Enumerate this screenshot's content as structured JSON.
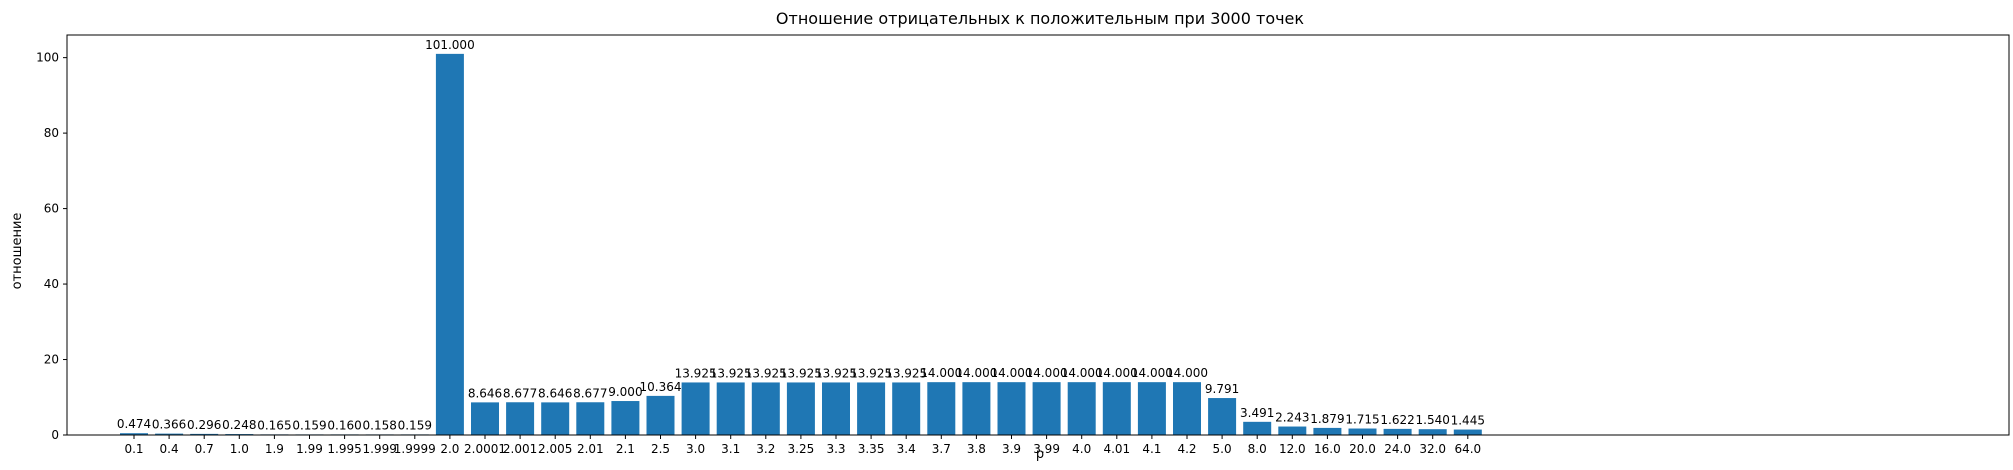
{
  "chart_data": {
    "type": "bar",
    "title": "Отношение отрицательных к положительным при 3000 точек",
    "xlabel": "p",
    "ylabel": "отношение",
    "categories": [
      "0.1",
      "0.4",
      "0.7",
      "1.0",
      "1.9",
      "1.99",
      "1.995",
      "1.999",
      "1.9999",
      "2.0",
      "2.0001",
      "2.001",
      "2.005",
      "2.01",
      "2.1",
      "2.5",
      "3.0",
      "3.1",
      "3.2",
      "3.25",
      "3.3",
      "3.35",
      "3.4",
      "3.7",
      "3.8",
      "3.9",
      "3.99",
      "4.0",
      "4.01",
      "4.1",
      "4.2",
      "5.0",
      "8.0",
      "12.0",
      "16.0",
      "20.0",
      "24.0",
      "32.0",
      "64.0"
    ],
    "values": [
      0.474,
      0.366,
      0.296,
      0.248,
      0.165,
      0.159,
      0.16,
      0.158,
      0.159,
      101.0,
      8.646,
      8.677,
      8.646,
      8.677,
      9.0,
      10.364,
      13.925,
      13.925,
      13.925,
      13.925,
      13.925,
      13.925,
      13.925,
      14.0,
      14.0,
      14.0,
      14.0,
      14.0,
      14.0,
      14.0,
      14.0,
      9.791,
      3.491,
      2.243,
      1.879,
      1.715,
      1.622,
      1.54,
      1.445
    ],
    "value_labels": [
      "0.474",
      "0.366",
      "0.296",
      "0.248",
      "0.165",
      "0.159",
      "0.160",
      "0.158",
      "0.159",
      "101.000",
      "8.646",
      "8.677",
      "8.646",
      "8.677",
      "9.000",
      "10.364",
      "13.925",
      "13.925",
      "13.925",
      "13.925",
      "13.925",
      "13.925",
      "13.925",
      "14.000",
      "14.000",
      "14.000",
      "14.000",
      "14.000",
      "14.000",
      "14.000",
      "14.000",
      "9.791",
      "3.491",
      "2.243",
      "1.879",
      "1.715",
      "1.622",
      "1.540",
      "1.445"
    ],
    "yticks": [
      0,
      20,
      40,
      60,
      80,
      100
    ],
    "ylim": [
      0,
      106
    ],
    "grid": false,
    "bar_color": "#1f77b4"
  }
}
